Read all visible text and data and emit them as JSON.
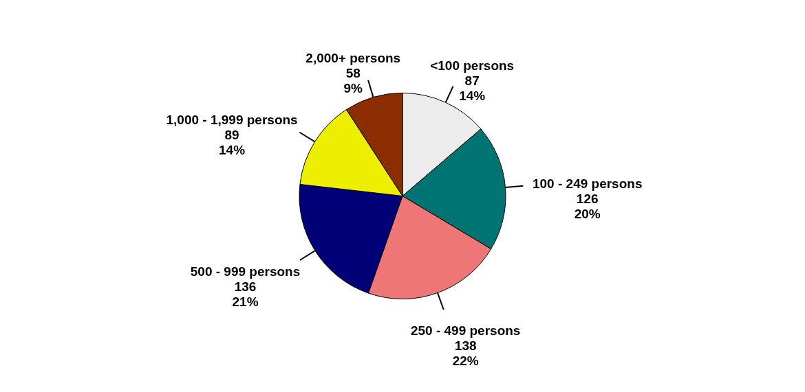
{
  "chart_data": {
    "type": "pie",
    "categories": [
      "<100 persons",
      "100 - 249 persons",
      "250 - 499 persons",
      "500 - 999 persons",
      "1,000 - 1,999 persons",
      "2,000+ persons"
    ],
    "values": [
      87,
      126,
      138,
      136,
      89,
      58
    ],
    "colors": [
      "#ececec",
      "#007373",
      "#ee7676",
      "#000077",
      "#eeee00",
      "#8b2d00"
    ],
    "value_labels": [
      "87\n14%",
      "126\n20%",
      "138\n22%",
      "136\n21%",
      "89\n14%",
      "58\n9%"
    ]
  }
}
